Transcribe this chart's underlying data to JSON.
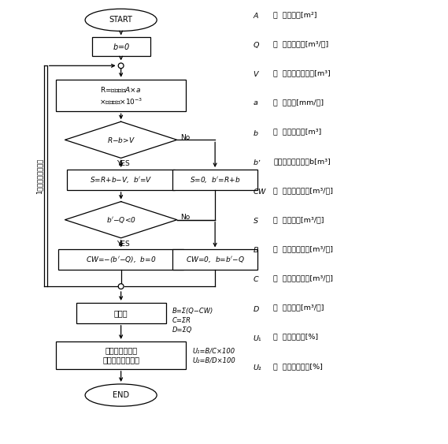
{
  "background_color": "#ffffff",
  "side_text": "1年里每天重复计算",
  "annual_note": "B=Σ(Q−CW)\nC=ΣR\nD=ΣQ",
  "calc_note": "U₁=B/C×100\nU₂=B/D×100",
  "legend": [
    [
      "A",
      "：  集水面积[m²]"
    ],
    [
      "Q",
      "：  雨水用水量[m³/日]"
    ],
    [
      "V",
      "：  雨水储存池容积[m³]"
    ],
    [
      "a",
      "：  降水量[mm/日]"
    ],
    [
      "b",
      "：  雨水储水量[m³]"
    ],
    [
      "b’",
      "：溢流量计算后的b[m³]"
    ],
    [
      "CW",
      "：  自来水补水量[m³/日]"
    ],
    [
      "S",
      "：  溢流水量[m³/日]"
    ],
    [
      "B",
      "：  年雨水利用量[m³/年]"
    ],
    [
      "C",
      "：  年雨水收集量[m³/年]"
    ],
    [
      "D",
      "：  年用水量[m³/年]"
    ],
    [
      "U₁",
      "：  雨水利用率[%]"
    ],
    [
      "U₂",
      "：  自来水替代率[%]"
    ]
  ]
}
